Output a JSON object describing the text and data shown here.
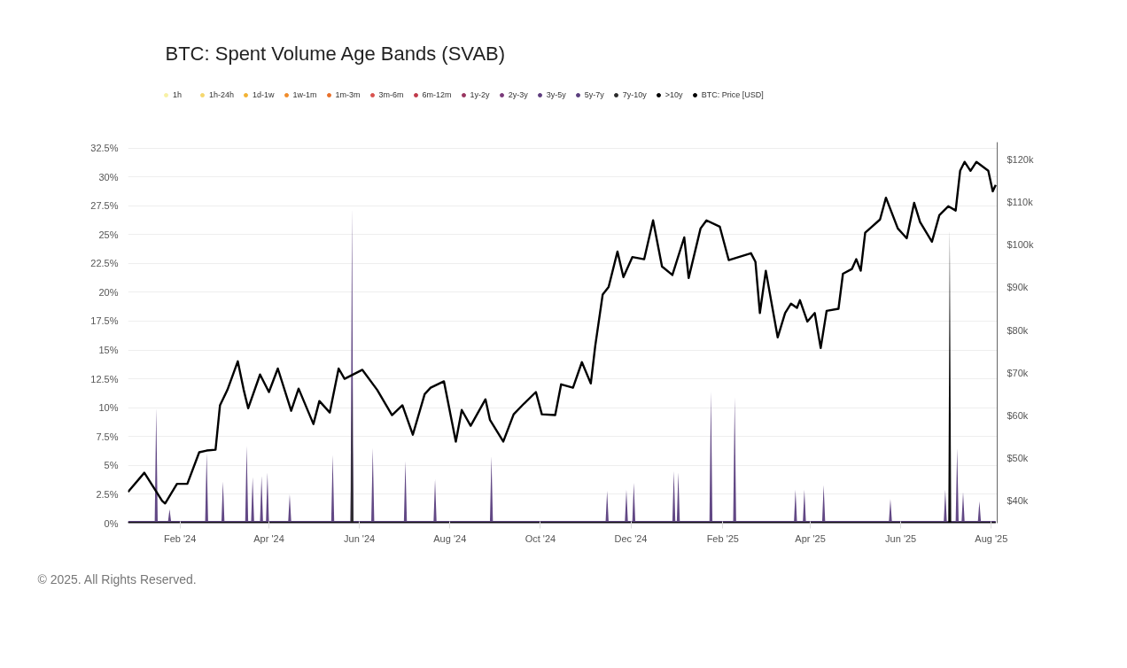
{
  "chart_data": {
    "type": "area",
    "title": "BTC: Spent Volume Age Bands (SVAB)",
    "annotations": [
      "© 2025. All Rights Reserved."
    ],
    "legend": "top",
    "grid": "y",
    "xlim": [
      "2023-12-28",
      "2025-08-05"
    ],
    "xticks": [
      {
        "value": "2024-02-01",
        "label": "Feb '24"
      },
      {
        "value": "2024-04-01",
        "label": "Apr '24"
      },
      {
        "value": "2024-06-01",
        "label": "Jun '24"
      },
      {
        "value": "2024-08-01",
        "label": "Aug '24"
      },
      {
        "value": "2024-10-01",
        "label": "Oct '24"
      },
      {
        "value": "2024-12-01",
        "label": "Dec '24"
      },
      {
        "value": "2025-02-01",
        "label": "Feb '25"
      },
      {
        "value": "2025-04-01",
        "label": "Apr '25"
      },
      {
        "value": "2025-06-01",
        "label": "Jun '25"
      },
      {
        "value": "2025-08-01",
        "label": "Aug '25"
      }
    ],
    "ylim": [
      0,
      33
    ],
    "yticks": [
      {
        "value": 0,
        "label": "0%"
      },
      {
        "value": 2.5,
        "label": "2.5%"
      },
      {
        "value": 5,
        "label": "5%"
      },
      {
        "value": 7.5,
        "label": "7.5%"
      },
      {
        "value": 10,
        "label": "10%"
      },
      {
        "value": 12.5,
        "label": "12.5%"
      },
      {
        "value": 15,
        "label": "15%"
      },
      {
        "value": 17.5,
        "label": "17.5%"
      },
      {
        "value": 20,
        "label": "20%"
      },
      {
        "value": 22.5,
        "label": "22.5%"
      },
      {
        "value": 25,
        "label": "25%"
      },
      {
        "value": 27.5,
        "label": "27.5%"
      },
      {
        "value": 30,
        "label": "30%"
      },
      {
        "value": 32.5,
        "label": "32.5%"
      }
    ],
    "y2lim": [
      34800,
      124000
    ],
    "y2ticks": [
      {
        "value": 40000,
        "label": "$40k"
      },
      {
        "value": 50000,
        "label": "$50k"
      },
      {
        "value": 60000,
        "label": "$60k"
      },
      {
        "value": 70000,
        "label": "$70k"
      },
      {
        "value": 80000,
        "label": "$80k"
      },
      {
        "value": 90000,
        "label": "$90k"
      },
      {
        "value": 100000,
        "label": "$100k"
      },
      {
        "value": 110000,
        "label": "$110k"
      },
      {
        "value": 120000,
        "label": "$120k"
      }
    ],
    "series": [
      {
        "name": "1h",
        "color": "#f7f1a5"
      },
      {
        "name": "1h-24h",
        "color": "#f5d76e"
      },
      {
        "name": "1d-1w",
        "color": "#f2b233"
      },
      {
        "name": "1w-1m",
        "color": "#f08c2a"
      },
      {
        "name": "1m-3m",
        "color": "#e8702a"
      },
      {
        "name": "3m-6m",
        "color": "#d9534f"
      },
      {
        "name": "6m-12m",
        "color": "#c03a4a"
      },
      {
        "name": "1y-2y",
        "color": "#9a3560"
      },
      {
        "name": "2y-3y",
        "color": "#7a3a7a"
      },
      {
        "name": "3y-5y",
        "color": "#5e3d7e"
      },
      {
        "name": "5y-7y",
        "color": "#5a3e7e",
        "x": [
          "2023-12-28",
          "2024-01-15",
          "2024-01-16",
          "2024-01-17",
          "2024-01-24",
          "2024-01-25",
          "2024-01-26",
          "2024-02-18",
          "2024-02-19",
          "2024-02-20",
          "2024-02-29",
          "2024-03-01",
          "2024-03-02",
          "2024-03-16",
          "2024-03-17",
          "2024-03-18",
          "2024-03-20",
          "2024-03-21",
          "2024-03-22",
          "2024-03-26",
          "2024-03-27",
          "2024-03-28",
          "2024-03-30",
          "2024-03-31",
          "2024-04-01",
          "2024-04-14",
          "2024-04-15",
          "2024-04-16",
          "2024-05-13",
          "2024-05-14",
          "2024-05-15",
          "2024-05-26",
          "2024-05-27",
          "2024-05-28",
          "2024-06-09",
          "2024-06-10",
          "2024-06-11",
          "2024-07-01",
          "2024-07-02",
          "2024-07-03",
          "2024-07-21",
          "2024-07-22",
          "2024-07-23",
          "2024-08-28",
          "2024-08-29",
          "2024-08-30",
          "2024-11-14",
          "2024-11-15",
          "2024-11-16",
          "2024-11-27",
          "2024-11-28",
          "2024-11-29",
          "2024-12-02",
          "2024-12-03",
          "2024-12-04",
          "2024-12-29",
          "2024-12-30",
          "2024-12-31",
          "2025-01-01",
          "2025-01-02",
          "2025-01-03",
          "2025-01-23",
          "2025-01-24",
          "2025-01-25",
          "2025-02-08",
          "2025-02-09",
          "2025-02-10",
          "2025-03-21",
          "2025-03-22",
          "2025-03-23",
          "2025-03-27",
          "2025-03-28",
          "2025-03-29",
          "2025-04-09",
          "2025-04-10",
          "2025-04-11",
          "2025-05-24",
          "2025-05-25",
          "2025-05-26",
          "2025-06-30",
          "2025-07-01",
          "2025-07-02",
          "2025-07-08",
          "2025-07-09",
          "2025-07-10",
          "2025-07-12",
          "2025-07-13",
          "2025-07-14",
          "2025-07-23",
          "2025-07-24",
          "2025-07-25",
          "2025-08-04"
        ],
        "values": [
          0.2,
          0.2,
          10.0,
          0.2,
          0.2,
          1.2,
          0.2,
          0.2,
          6.1,
          0.2,
          0.2,
          3.6,
          0.2,
          0.2,
          6.7,
          0.2,
          0.2,
          4.0,
          0.2,
          0.2,
          4.1,
          0.2,
          0.2,
          4.4,
          0.2,
          0.2,
          2.5,
          0.2,
          0.2,
          5.9,
          0.2,
          0.2,
          27.3,
          0.2,
          0.2,
          6.5,
          0.2,
          0.2,
          5.4,
          0.2,
          0.2,
          3.8,
          0.2,
          0.2,
          5.8,
          0.2,
          0.2,
          2.8,
          0.2,
          0.2,
          2.9,
          0.2,
          0.2,
          3.5,
          0.2,
          0.2,
          4.5,
          0.2,
          0.2,
          4.4,
          0.2,
          0.2,
          11.4,
          0.2,
          0.2,
          10.9,
          0.2,
          0.2,
          2.9,
          0.2,
          0.2,
          2.9,
          0.2,
          0.2,
          3.3,
          0.2,
          0.2,
          2.1,
          0.2,
          0.2,
          2.9,
          0.2,
          0.2,
          6.5,
          0.2,
          0.2,
          2.7,
          0.2,
          0.2,
          1.9,
          0.2,
          0.2
        ]
      },
      {
        "name": "7y-10y",
        "color": "#2b2b2b",
        "x": [
          "2023-12-28",
          "2024-05-26",
          "2024-05-27",
          "2024-05-28",
          "2025-08-04"
        ],
        "values": [
          0.1,
          0.1,
          12.0,
          0.1,
          0.1
        ]
      },
      {
        "name": ">10y",
        "color": "#000000",
        "x": [
          "2023-12-28",
          "2025-07-03",
          "2025-07-04",
          "2025-07-05",
          "2025-08-04"
        ],
        "values": [
          0.1,
          0.1,
          25.5,
          0.1,
          0.1
        ]
      },
      {
        "name": "BTC: Price [USD]",
        "type": "line",
        "axis": "y2",
        "color": "#000000",
        "x": [
          "2023-12-28",
          "2024-01-08",
          "2024-01-20",
          "2024-01-22",
          "2024-01-30",
          "2024-02-06",
          "2024-02-14",
          "2024-02-19",
          "2024-02-25",
          "2024-02-28",
          "2024-03-04",
          "2024-03-11",
          "2024-03-15",
          "2024-03-18",
          "2024-03-26",
          "2024-04-01",
          "2024-04-07",
          "2024-04-16",
          "2024-04-21",
          "2024-05-01",
          "2024-05-05",
          "2024-05-12",
          "2024-05-18",
          "2024-05-22",
          "2024-06-03",
          "2024-06-13",
          "2024-06-23",
          "2024-06-30",
          "2024-07-07",
          "2024-07-15",
          "2024-07-19",
          "2024-07-28",
          "2024-08-05",
          "2024-08-09",
          "2024-08-15",
          "2024-08-25",
          "2024-08-28",
          "2024-09-06",
          "2024-09-13",
          "2024-09-20",
          "2024-09-28",
          "2024-10-02",
          "2024-10-11",
          "2024-10-15",
          "2024-10-23",
          "2024-10-29",
          "2024-11-04",
          "2024-11-07",
          "2024-11-12",
          "2024-11-16",
          "2024-11-22",
          "2024-11-26",
          "2024-12-02",
          "2024-12-10",
          "2024-12-16",
          "2024-12-22",
          "2024-12-29",
          "2025-01-06",
          "2025-01-09",
          "2025-01-17",
          "2025-01-21",
          "2025-01-30",
          "2025-02-05",
          "2025-02-20",
          "2025-02-23",
          "2025-02-26",
          "2025-03-02",
          "2025-03-10",
          "2025-03-15",
          "2025-03-19",
          "2025-03-23",
          "2025-03-25",
          "2025-03-30",
          "2025-04-04",
          "2025-04-08",
          "2025-04-12",
          "2025-04-20",
          "2025-04-23",
          "2025-04-29",
          "2025-05-02",
          "2025-05-05",
          "2025-05-08",
          "2025-05-18",
          "2025-05-22",
          "2025-05-30",
          "2025-06-05",
          "2025-06-10",
          "2025-06-14",
          "2025-06-22",
          "2025-06-27",
          "2025-07-03",
          "2025-07-08",
          "2025-07-11",
          "2025-07-14",
          "2025-07-18",
          "2025-07-22",
          "2025-07-30",
          "2025-08-02",
          "2025-08-04"
        ],
        "values": [
          42100,
          46600,
          40000,
          39400,
          44000,
          44000,
          51400,
          51800,
          52000,
          62400,
          66000,
          72700,
          66000,
          61700,
          69600,
          65500,
          71000,
          61100,
          66300,
          58000,
          63400,
          60700,
          71000,
          68600,
          70700,
          66000,
          60100,
          62400,
          55500,
          65000,
          66500,
          68000,
          53900,
          61300,
          57600,
          63800,
          59000,
          53900,
          60300,
          62800,
          65500,
          60300,
          60100,
          67300,
          66500,
          72500,
          67500,
          76300,
          88300,
          90100,
          98400,
          92400,
          97100,
          96600,
          105700,
          94900,
          92900,
          101700,
          92200,
          103800,
          105700,
          104200,
          96400,
          98000,
          96000,
          84000,
          93900,
          78300,
          84000,
          86200,
          85200,
          87000,
          82000,
          84000,
          75800,
          84500,
          85000,
          93200,
          94300,
          96600,
          93900,
          102800,
          105900,
          111000,
          103800,
          101500,
          109800,
          105300,
          100700,
          106900,
          109000,
          108000,
          117300,
          119400,
          117300,
          119400,
          117300,
          112500,
          114000
        ]
      }
    ]
  }
}
